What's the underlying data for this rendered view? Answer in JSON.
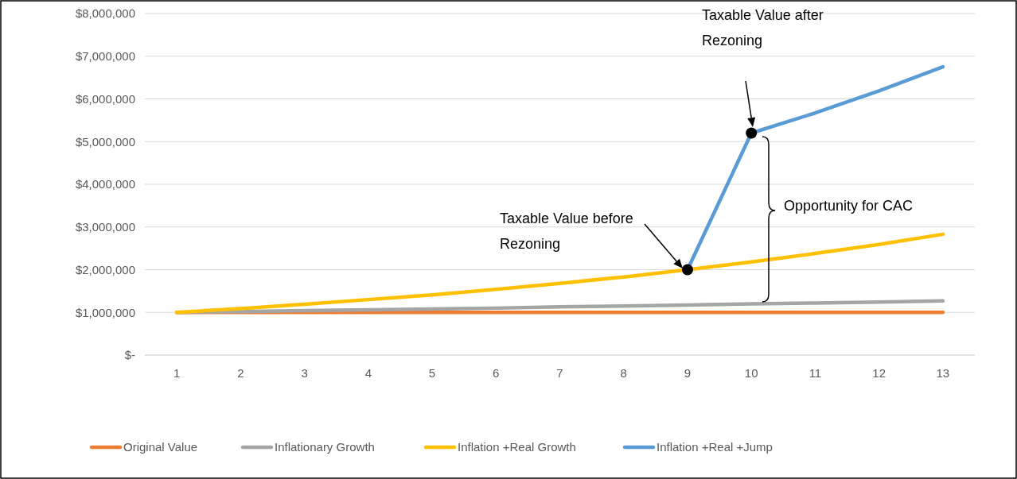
{
  "chart_data": {
    "type": "line",
    "x": [
      1,
      2,
      3,
      4,
      5,
      6,
      7,
      8,
      9,
      10,
      11,
      12,
      13
    ],
    "xlim": [
      0.5,
      13.5
    ],
    "xticks": [
      1,
      2,
      3,
      4,
      5,
      6,
      7,
      8,
      9,
      10,
      11,
      12,
      13
    ],
    "ylim": [
      0,
      8000000
    ],
    "yticks": [
      {
        "value": 0,
        "label": "$-"
      },
      {
        "value": 1000000,
        "label": "$1,000,000"
      },
      {
        "value": 2000000,
        "label": "$2,000,000"
      },
      {
        "value": 3000000,
        "label": "$3,000,000"
      },
      {
        "value": 4000000,
        "label": "$4,000,000"
      },
      {
        "value": 5000000,
        "label": "$5,000,000"
      },
      {
        "value": 6000000,
        "label": "$6,000,000"
      },
      {
        "value": 7000000,
        "label": "$7,000,000"
      },
      {
        "value": 8000000,
        "label": "$8,000,000"
      }
    ],
    "grid": "y",
    "legend": "bottom",
    "series": [
      {
        "name": "Original Value",
        "color": "#ed7d31",
        "values": [
          1000000,
          1000000,
          1000000,
          1000000,
          1000000,
          1000000,
          1000000,
          1000000,
          1000000,
          1000000,
          1000000,
          1000000,
          1000000
        ]
      },
      {
        "name": "Inflationary Growth",
        "color": "#a5a5a5",
        "values": [
          1000000,
          1020000,
          1040000,
          1060000,
          1080000,
          1100000,
          1130000,
          1150000,
          1170000,
          1200000,
          1220000,
          1240000,
          1270000
        ]
      },
      {
        "name": "Inflation +Real Growth",
        "color": "#ffc000",
        "values": [
          1000000,
          1090000,
          1190000,
          1300000,
          1410000,
          1540000,
          1680000,
          1830000,
          2000000,
          2180000,
          2380000,
          2590000,
          2830000
        ]
      },
      {
        "name": "Inflation +Real +Jump",
        "color": "#5b9bd5",
        "values": [
          null,
          null,
          null,
          null,
          null,
          null,
          null,
          null,
          2000000,
          5200000,
          5670000,
          6190000,
          6750000
        ]
      },
      {
        "type": "scatter",
        "color": "#000000",
        "marker": "circle",
        "x": [
          9,
          10
        ],
        "values": [
          2000000,
          5200000
        ]
      }
    ],
    "annotations": [
      "Taxable Value before Rezoning",
      "Taxable Value after Rezoning",
      "Opportunity for CAC"
    ]
  }
}
